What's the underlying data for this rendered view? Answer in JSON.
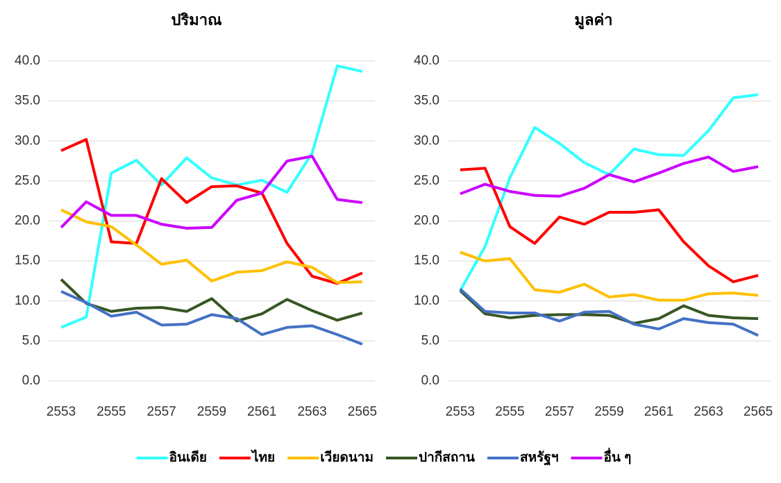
{
  "chart_data": [
    {
      "type": "line",
      "title": "ปริมาณ",
      "categories": [
        "2553",
        null,
        "2555",
        null,
        "2557",
        null,
        "2559",
        null,
        "2561",
        null,
        "2563",
        null,
        "2565"
      ],
      "ylim": [
        0,
        40
      ],
      "yticks": [
        {
          "value": 0,
          "label": "0.0"
        },
        {
          "value": 5,
          "label": "5.0"
        },
        {
          "value": 10,
          "label": "10.0"
        },
        {
          "value": 15,
          "label": "15.0"
        },
        {
          "value": 20,
          "label": "20.0"
        },
        {
          "value": 25,
          "label": "25.0"
        },
        {
          "value": 30,
          "label": "30.0"
        },
        {
          "value": 35,
          "label": "35.0"
        },
        {
          "value": 40,
          "label": "40.0"
        }
      ],
      "grid": true,
      "legend": "bottom",
      "series": [
        {
          "name": "อินเดีย",
          "color": "#33ffff",
          "values": [
            6.7,
            8,
            26,
            27.6,
            24.5,
            27.9,
            25.4,
            24.5,
            25.1,
            23.6,
            28.5,
            39.4,
            38.7
          ]
        },
        {
          "name": "ไทย",
          "color": "#ff0000",
          "values": [
            28.8,
            30.2,
            17.4,
            17.2,
            25.3,
            22.3,
            24.3,
            24.4,
            23.5,
            17.2,
            13.1,
            12.2,
            13.5
          ]
        },
        {
          "name": "เวียดนาม",
          "color": "#ffc000",
          "values": [
            21.4,
            19.9,
            19.3,
            17,
            14.6,
            15.1,
            12.5,
            13.6,
            13.8,
            14.9,
            14.2,
            12.3,
            12.4
          ]
        },
        {
          "name": "ปากีสถาน",
          "color": "#375623",
          "values": [
            12.7,
            9.7,
            8.7,
            9.1,
            9.2,
            8.7,
            10.3,
            7.5,
            8.4,
            10.2,
            8.8,
            7.6,
            8.5
          ]
        },
        {
          "name": "สหรัฐฯ",
          "color": "#4472c4",
          "values": [
            11.2,
            9.8,
            8.1,
            8.6,
            7,
            7.1,
            8.3,
            7.8,
            5.8,
            6.7,
            6.9,
            5.8,
            4.6
          ]
        },
        {
          "name": "อื่น ๆ",
          "color": "#cc00ff",
          "values": [
            19.2,
            22.4,
            20.7,
            20.7,
            19.6,
            19.1,
            19.2,
            22.6,
            23.5,
            27.5,
            28.1,
            22.7,
            22.3
          ]
        }
      ]
    },
    {
      "type": "line",
      "title": "มูลค่า",
      "categories": [
        "2553",
        null,
        "2555",
        null,
        "2557",
        null,
        "2559",
        null,
        "2561",
        null,
        "2563",
        null,
        "2565"
      ],
      "ylim": [
        0,
        40
      ],
      "yticks": [
        {
          "value": 0,
          "label": "0.0"
        },
        {
          "value": 5,
          "label": "5.0"
        },
        {
          "value": 10,
          "label": "10.0"
        },
        {
          "value": 15,
          "label": "15.0"
        },
        {
          "value": 20,
          "label": "20.0"
        },
        {
          "value": 25,
          "label": "25.0"
        },
        {
          "value": 30,
          "label": "30.0"
        },
        {
          "value": 35,
          "label": "35.0"
        },
        {
          "value": 40,
          "label": "40.0"
        }
      ],
      "grid": true,
      "series": [
        {
          "values": [
            11.3,
            16.8,
            25.4,
            31.7,
            29.7,
            27.3,
            25.8,
            29,
            28.3,
            28.2,
            31.3,
            35.4,
            35.8
          ]
        },
        {
          "values": [
            26.4,
            26.6,
            19.3,
            17.2,
            20.5,
            19.6,
            21.1,
            21.1,
            21.4,
            17.4,
            14.4,
            12.4,
            13.2
          ]
        },
        {
          "values": [
            16.1,
            15,
            15.3,
            11.4,
            11.1,
            12.1,
            10.5,
            10.8,
            10.1,
            10.1,
            10.9,
            11,
            10.7
          ]
        },
        {
          "values": [
            11.3,
            8.4,
            7.9,
            8.2,
            8.3,
            8.3,
            8.2,
            7.2,
            7.8,
            9.4,
            8.2,
            7.9,
            7.8
          ]
        },
        {
          "values": [
            11.5,
            8.7,
            8.5,
            8.5,
            7.5,
            8.6,
            8.7,
            7.1,
            6.5,
            7.8,
            7.3,
            7.1,
            5.7
          ]
        },
        {
          "values": [
            23.4,
            24.6,
            23.7,
            23.2,
            23.1,
            24.1,
            25.8,
            24.9,
            26,
            27.2,
            28,
            26.2,
            26.8
          ]
        }
      ]
    }
  ]
}
